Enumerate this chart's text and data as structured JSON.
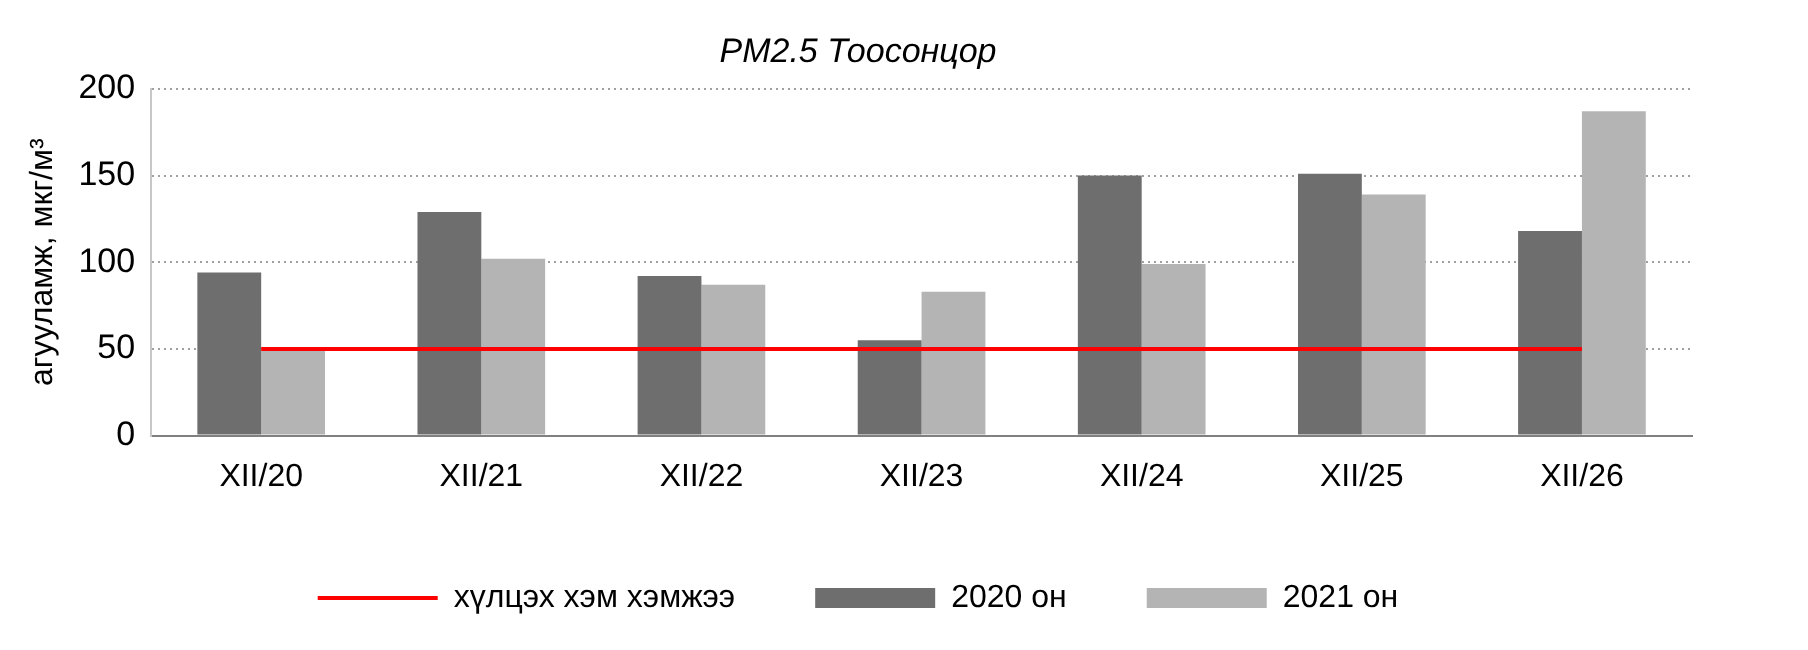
{
  "chart_data": {
    "type": "bar",
    "title": "PM2.5 Тоосонцор",
    "ylabel": "агууламж, мкг/м³",
    "categories": [
      "XII/20",
      "XII/21",
      "XII/22",
      "XII/23",
      "XII/24",
      "XII/25",
      "XII/26"
    ],
    "series": [
      {
        "name": "2020 он",
        "color": "#6e6e6e",
        "values": [
          94,
          129,
          92,
          55,
          150,
          151,
          118
        ]
      },
      {
        "name": "2021 он",
        "color": "#b4b4b4",
        "values": [
          50,
          102,
          87,
          83,
          99,
          139,
          187
        ]
      },
      {
        "name": "хүлцэх хэм хэмжээ",
        "type": "line",
        "color": "#ff0000",
        "values": [
          50,
          50,
          50,
          50,
          50,
          50,
          50
        ]
      }
    ],
    "ylim": [
      0,
      200
    ],
    "yticks": [
      0,
      50,
      100,
      150,
      200
    ],
    "grid": "y",
    "legend": "bottom",
    "marker": "none"
  }
}
